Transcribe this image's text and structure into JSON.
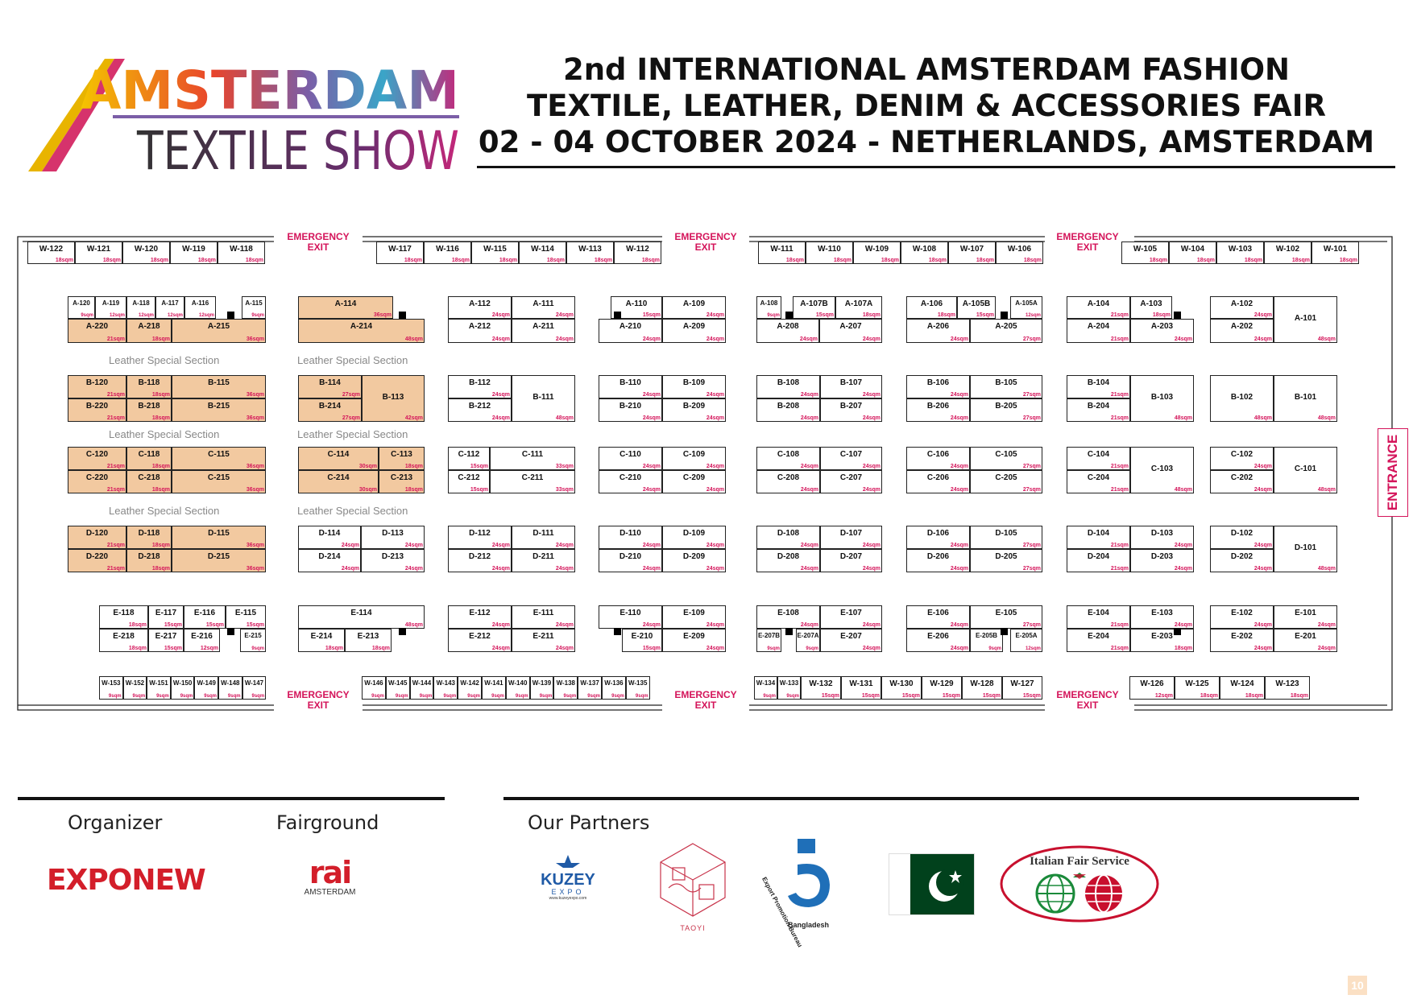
{
  "header": {
    "logo": {
      "line1": "AMSTERDAM",
      "line2": "TEXTILE SHOW"
    },
    "title_lines": [
      "2nd INTERNATIONAL AMSTERDAM FASHION",
      "TEXTILE, LEATHER, DENIM & ACCESSORIES FAIR",
      "02 - 04 OCTOBER 2024 - NETHERLANDS, AMSTERDAM"
    ]
  },
  "floorplan": {
    "entrance": "ENTRANCE",
    "emergency_exit": "EMERGENCY\nEXIT",
    "leather_section_label": "Leather Special Section",
    "colors": {
      "leather": "#f2c9a0",
      "size_text": "#d4145a",
      "exit_text": "#d4145a"
    },
    "booths": [
      [
        "W-122",
        "18sqm"
      ],
      [
        "W-121",
        "18sqm"
      ],
      [
        "W-120",
        "18sqm"
      ],
      [
        "W-119",
        "18sqm"
      ],
      [
        "W-118",
        "18sqm"
      ],
      [
        "W-117",
        "18sqm"
      ],
      [
        "W-116",
        "18sqm"
      ],
      [
        "W-115",
        "18sqm"
      ],
      [
        "W-114",
        "18sqm"
      ],
      [
        "W-113",
        "18sqm"
      ],
      [
        "W-112",
        "18sqm"
      ],
      [
        "W-111",
        "18sqm"
      ],
      [
        "W-110",
        "18sqm"
      ],
      [
        "W-109",
        "18sqm"
      ],
      [
        "W-108",
        "18sqm"
      ],
      [
        "W-107",
        "18sqm"
      ],
      [
        "W-106",
        "18sqm"
      ],
      [
        "W-105",
        "18sqm"
      ],
      [
        "W-104",
        "18sqm"
      ],
      [
        "W-103",
        "18sqm"
      ],
      [
        "W-102",
        "18sqm"
      ],
      [
        "W-101",
        "18sqm"
      ],
      [
        "A-120",
        "9sqm"
      ],
      [
        "A-119",
        "12sqm"
      ],
      [
        "A-118",
        "12sqm"
      ],
      [
        "A-117",
        "12sqm"
      ],
      [
        "A-116",
        "12sqm"
      ],
      [
        "A-115",
        "9sqm"
      ],
      [
        "A-220",
        "21sqm"
      ],
      [
        "A-218",
        "18sqm"
      ],
      [
        "A-215",
        "36sqm"
      ],
      [
        "A-114",
        "36sqm"
      ],
      [
        "A-214",
        "48sqm"
      ],
      [
        "A-112",
        "24sqm"
      ],
      [
        "A-111",
        "24sqm"
      ],
      [
        "A-212",
        "24sqm"
      ],
      [
        "A-211",
        "24sqm"
      ],
      [
        "A-110",
        "15sqm"
      ],
      [
        "A-109",
        "24sqm"
      ],
      [
        "A-210",
        "24sqm"
      ],
      [
        "A-209",
        "24sqm"
      ],
      [
        "A-108",
        "9sqm"
      ],
      [
        "A-107B",
        "15sqm"
      ],
      [
        "A-107A",
        "18sqm"
      ],
      [
        "A-208",
        "24sqm"
      ],
      [
        "A-207",
        "24sqm"
      ],
      [
        "A-106",
        "18sqm"
      ],
      [
        "A-105B",
        "15sqm"
      ],
      [
        "A-105A",
        "12sqm"
      ],
      [
        "A-206",
        "24sqm"
      ],
      [
        "A-205",
        "27sqm"
      ],
      [
        "A-104",
        "21sqm"
      ],
      [
        "A-103",
        "18sqm"
      ],
      [
        "A-204",
        "21sqm"
      ],
      [
        "A-203",
        "24sqm"
      ],
      [
        "A-102",
        "24sqm"
      ],
      [
        "A-202",
        "24sqm"
      ],
      [
        "A-101",
        "48sqm"
      ],
      [
        "B-120",
        "21sqm"
      ],
      [
        "B-118",
        "18sqm"
      ],
      [
        "B-115",
        "36sqm"
      ],
      [
        "B-220",
        "21sqm"
      ],
      [
        "B-218",
        "18sqm"
      ],
      [
        "B-215",
        "36sqm"
      ],
      [
        "B-114",
        "27sqm"
      ],
      [
        "B-214",
        "27sqm"
      ],
      [
        "B-113",
        "42sqm"
      ],
      [
        "B-112",
        "24sqm"
      ],
      [
        "B-212",
        "24sqm"
      ],
      [
        "B-111",
        "48sqm"
      ],
      [
        "B-110",
        "24sqm"
      ],
      [
        "B-109",
        "24sqm"
      ],
      [
        "B-210",
        "24sqm"
      ],
      [
        "B-209",
        "24sqm"
      ],
      [
        "B-108",
        "24sqm"
      ],
      [
        "B-107",
        "24sqm"
      ],
      [
        "B-208",
        "24sqm"
      ],
      [
        "B-207",
        "24sqm"
      ],
      [
        "B-106",
        "24sqm"
      ],
      [
        "B-105",
        "27sqm"
      ],
      [
        "B-206",
        "24sqm"
      ],
      [
        "B-205",
        "27sqm"
      ],
      [
        "B-104",
        "21sqm"
      ],
      [
        "B-204",
        "21sqm"
      ],
      [
        "B-103",
        "48sqm"
      ],
      [
        "B-102",
        "48sqm"
      ],
      [
        "B-101",
        "48sqm"
      ],
      [
        "C-120",
        "21sqm"
      ],
      [
        "C-118",
        "18sqm"
      ],
      [
        "C-115",
        "36sqm"
      ],
      [
        "C-220",
        "21sqm"
      ],
      [
        "C-218",
        "18sqm"
      ],
      [
        "C-215",
        "36sqm"
      ],
      [
        "C-114",
        "30sqm"
      ],
      [
        "C-113",
        "18sqm"
      ],
      [
        "C-214",
        "30sqm"
      ],
      [
        "C-213",
        "18sqm"
      ],
      [
        "C-112",
        "15sqm"
      ],
      [
        "C-111",
        "33sqm"
      ],
      [
        "C-212",
        "15sqm"
      ],
      [
        "C-211",
        "33sqm"
      ],
      [
        "C-110",
        "24sqm"
      ],
      [
        "C-109",
        "24sqm"
      ],
      [
        "C-210",
        "24sqm"
      ],
      [
        "C-209",
        "24sqm"
      ],
      [
        "C-108",
        "24sqm"
      ],
      [
        "C-107",
        "24sqm"
      ],
      [
        "C-208",
        "24sqm"
      ],
      [
        "C-207",
        "24sqm"
      ],
      [
        "C-106",
        "24sqm"
      ],
      [
        "C-105",
        "27sqm"
      ],
      [
        "C-206",
        "24sqm"
      ],
      [
        "C-205",
        "27sqm"
      ],
      [
        "C-104",
        "21sqm"
      ],
      [
        "C-204",
        "21sqm"
      ],
      [
        "C-103",
        "48sqm"
      ],
      [
        "C-102",
        "24sqm"
      ],
      [
        "C-202",
        "24sqm"
      ],
      [
        "C-101",
        "48sqm"
      ],
      [
        "D-120",
        "21sqm"
      ],
      [
        "D-118",
        "18sqm"
      ],
      [
        "D-115",
        "36sqm"
      ],
      [
        "D-220",
        "21sqm"
      ],
      [
        "D-218",
        "18sqm"
      ],
      [
        "D-215",
        "36sqm"
      ],
      [
        "D-114",
        "24sqm"
      ],
      [
        "D-113",
        "24sqm"
      ],
      [
        "D-214",
        "24sqm"
      ],
      [
        "D-213",
        "24sqm"
      ],
      [
        "D-112",
        "24sqm"
      ],
      [
        "D-111",
        "24sqm"
      ],
      [
        "D-212",
        "24sqm"
      ],
      [
        "D-211",
        "24sqm"
      ],
      [
        "D-110",
        "24sqm"
      ],
      [
        "D-109",
        "24sqm"
      ],
      [
        "D-210",
        "24sqm"
      ],
      [
        "D-209",
        "24sqm"
      ],
      [
        "D-108",
        "24sqm"
      ],
      [
        "D-107",
        "24sqm"
      ],
      [
        "D-208",
        "24sqm"
      ],
      [
        "D-207",
        "24sqm"
      ],
      [
        "D-106",
        "24sqm"
      ],
      [
        "D-105",
        "27sqm"
      ],
      [
        "D-206",
        "24sqm"
      ],
      [
        "D-205",
        "27sqm"
      ],
      [
        "D-104",
        "21sqm"
      ],
      [
        "D-103",
        "24sqm"
      ],
      [
        "D-204",
        "21sqm"
      ],
      [
        "D-203",
        "24sqm"
      ],
      [
        "D-102",
        "24sqm"
      ],
      [
        "D-202",
        "24sqm"
      ],
      [
        "D-101",
        "48sqm"
      ],
      [
        "E-118",
        "18sqm"
      ],
      [
        "E-117",
        "15sqm"
      ],
      [
        "E-116",
        "15sqm"
      ],
      [
        "E-115",
        "15sqm"
      ],
      [
        "E-218",
        "18sqm"
      ],
      [
        "E-217",
        "15sqm"
      ],
      [
        "E-216",
        "12sqm"
      ],
      [
        "E-215",
        "9sqm"
      ],
      [
        "E-114",
        "48sqm"
      ],
      [
        "E-214",
        "18sqm"
      ],
      [
        "E-213",
        "18sqm"
      ],
      [
        "E-112",
        "24sqm"
      ],
      [
        "E-111",
        "24sqm"
      ],
      [
        "E-212",
        "24sqm"
      ],
      [
        "E-211",
        "24sqm"
      ],
      [
        "E-110",
        "24sqm"
      ],
      [
        "E-109",
        "24sqm"
      ],
      [
        "E-210",
        "15sqm"
      ],
      [
        "E-209",
        "24sqm"
      ],
      [
        "E-108",
        "24sqm"
      ],
      [
        "E-107",
        "24sqm"
      ],
      [
        "E-207B",
        "9sqm"
      ],
      [
        "E-207A",
        "9sqm"
      ],
      [
        "E-207",
        "24sqm"
      ],
      [
        "E-106",
        "24sqm"
      ],
      [
        "E-105",
        "27sqm"
      ],
      [
        "E-206",
        "24sqm"
      ],
      [
        "E-205B",
        "9sqm"
      ],
      [
        "E-205A",
        "12sqm"
      ],
      [
        "E-104",
        "21sqm"
      ],
      [
        "E-103",
        "24sqm"
      ],
      [
        "E-204",
        "21sqm"
      ],
      [
        "E-203",
        "18sqm"
      ],
      [
        "E-102",
        "24sqm"
      ],
      [
        "E-101",
        "24sqm"
      ],
      [
        "E-202",
        "24sqm"
      ],
      [
        "E-201",
        "24sqm"
      ],
      [
        "W-153",
        "9sqm"
      ],
      [
        "W-152",
        "9sqm"
      ],
      [
        "W-151",
        "9sqm"
      ],
      [
        "W-150",
        "9sqm"
      ],
      [
        "W-149",
        "9sqm"
      ],
      [
        "W-148",
        "9sqm"
      ],
      [
        "W-147",
        "9sqm"
      ],
      [
        "W-146",
        "9sqm"
      ],
      [
        "W-145",
        "9sqm"
      ],
      [
        "W-144",
        "9sqm"
      ],
      [
        "W-143",
        "9sqm"
      ],
      [
        "W-142",
        "9sqm"
      ],
      [
        "W-141",
        "9sqm"
      ],
      [
        "W-140",
        "9sqm"
      ],
      [
        "W-139",
        "9sqm"
      ],
      [
        "W-138",
        "9sqm"
      ],
      [
        "W-137",
        "9sqm"
      ],
      [
        "W-136",
        "9sqm"
      ],
      [
        "W-135",
        "9sqm"
      ],
      [
        "W-134",
        "9sqm"
      ],
      [
        "W-133",
        "9sqm"
      ],
      [
        "W-132",
        "15sqm"
      ],
      [
        "W-131",
        "15sqm"
      ],
      [
        "W-130",
        "15sqm"
      ],
      [
        "W-129",
        "15sqm"
      ],
      [
        "W-128",
        "15sqm"
      ],
      [
        "W-127",
        "15sqm"
      ],
      [
        "W-126",
        "12sqm"
      ],
      [
        "W-125",
        "18sqm"
      ],
      [
        "W-124",
        "18sqm"
      ],
      [
        "W-123",
        "18sqm"
      ]
    ]
  },
  "footer": {
    "organizer_label": "Organizer",
    "fairground_label": "Fairground",
    "partners_label": "Our Partners",
    "organizer_logo": "EXPONEW",
    "fairground_logo": {
      "main": "rai",
      "sub": "AMSTERDAM"
    },
    "partners": {
      "kuzey": {
        "name": "KUZEY",
        "sub": "EXPO",
        "url": "www.kuzeyexpo.com"
      },
      "taoyi": "TAOYI",
      "epb": {
        "name": "Export Promotion Bureau",
        "country": "Bangladesh"
      },
      "italian": "Italian Fair Service"
    },
    "page_number": "10"
  }
}
